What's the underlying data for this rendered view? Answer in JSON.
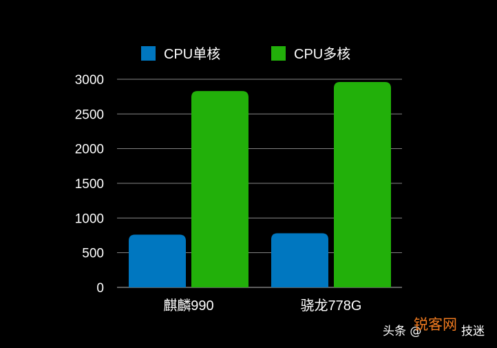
{
  "chart_data": {
    "type": "bar",
    "categories": [
      "麒麟990",
      "骁龙778G"
    ],
    "series": [
      {
        "name": "CPU单核",
        "values": [
          760,
          780
        ],
        "color": "#0077c0"
      },
      {
        "name": "CPU多核",
        "values": [
          2830,
          2960
        ],
        "color": "#22b00a"
      }
    ],
    "yticks": [
      0,
      500,
      1000,
      1500,
      2000,
      2500,
      3000
    ],
    "ylim": [
      0,
      3000
    ],
    "grid": true,
    "legend_position": "top"
  },
  "watermark": {
    "left": "头条 @",
    "middle": "锐客网",
    "right": "技迷"
  }
}
